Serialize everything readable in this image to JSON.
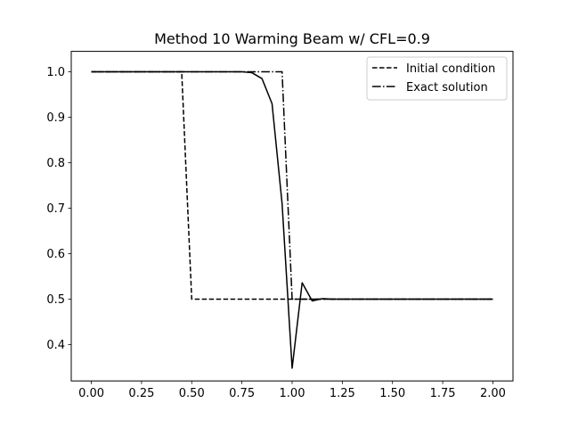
{
  "chart_data": {
    "type": "line",
    "title": "Method 10 Warming Beam w/ CFL=0.9",
    "xlabel": "",
    "ylabel": "",
    "xlim": [
      -0.1,
      2.1
    ],
    "ylim": [
      0.32,
      1.045
    ],
    "x_ticks": [
      0.0,
      0.25,
      0.5,
      0.75,
      1.0,
      1.25,
      1.5,
      1.75,
      2.0
    ],
    "x_tick_labels": [
      "0.00",
      "0.25",
      "0.50",
      "0.75",
      "1.00",
      "1.25",
      "1.50",
      "1.75",
      "2.00"
    ],
    "y_ticks": [
      0.4,
      0.5,
      0.6,
      0.7,
      0.8,
      0.9,
      1.0
    ],
    "y_tick_labels": [
      "0.4",
      "0.5",
      "0.6",
      "0.7",
      "0.8",
      "0.9",
      "1.0"
    ],
    "grid": false,
    "legend": {
      "position": "upper-right",
      "entries": [
        "Initial condition",
        "Exact solution"
      ]
    },
    "series": [
      {
        "name": "Initial condition",
        "style": "dashed",
        "color": "#000000",
        "x": [
          0.0,
          0.45,
          0.5,
          2.0
        ],
        "y": [
          1.0,
          1.0,
          0.5,
          0.5
        ]
      },
      {
        "name": "Exact solution",
        "style": "dashdot",
        "color": "#000000",
        "x": [
          0.0,
          0.95,
          1.0,
          2.0
        ],
        "y": [
          1.0,
          1.0,
          0.5,
          0.5
        ]
      },
      {
        "style": "solid",
        "color": "#000000",
        "x": [
          0.0,
          0.75,
          0.8,
          0.85,
          0.9,
          0.95,
          1.0,
          1.05,
          1.1,
          1.15,
          1.2,
          1.5,
          2.0
        ],
        "y": [
          1.0,
          1.0,
          0.998,
          0.985,
          0.93,
          0.71,
          0.348,
          0.536,
          0.496,
          0.501,
          0.5,
          0.5,
          0.5
        ]
      }
    ]
  }
}
